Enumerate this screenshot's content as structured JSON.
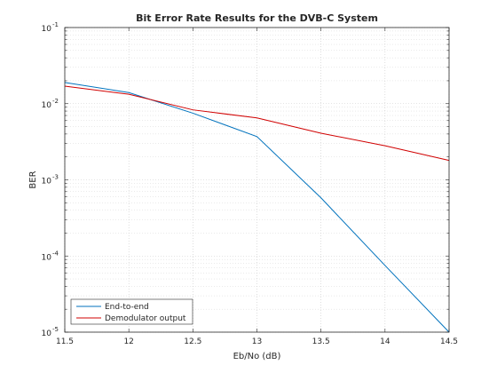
{
  "chart_data": {
    "type": "line",
    "title": "Bit Error Rate Results for the DVB-C System",
    "xlabel": "Eb/No (dB)",
    "ylabel": "BER",
    "xlim": [
      11.5,
      14.5
    ],
    "ylim": [
      1e-05,
      0.1
    ],
    "yscale": "log",
    "grid": true,
    "minor_grid": true,
    "legend_position": "bottom-left",
    "x_ticks": [
      "11.5",
      "12",
      "12.5",
      "13",
      "13.5",
      "14",
      "14.5"
    ],
    "y_tick_bases": [
      "10",
      "10",
      "10",
      "10",
      "10"
    ],
    "y_tick_exponents": [
      "-5",
      "-4",
      "-3",
      "-2",
      "-1"
    ],
    "series": [
      {
        "name": "End-to-end",
        "color": "#0072BD",
        "x": [
          11.5,
          12,
          12.5,
          13,
          13.5,
          14,
          14.5
        ],
        "y": [
          0.019,
          0.014,
          0.0075,
          0.0037,
          0.00058,
          7.5e-05,
          1e-05
        ]
      },
      {
        "name": "Demodulator output",
        "color": "#D00000",
        "x": [
          11.5,
          12,
          12.5,
          13,
          13.5,
          14,
          14.5
        ],
        "y": [
          0.017,
          0.0133,
          0.0083,
          0.0065,
          0.0041,
          0.0028,
          0.0018
        ]
      }
    ]
  }
}
